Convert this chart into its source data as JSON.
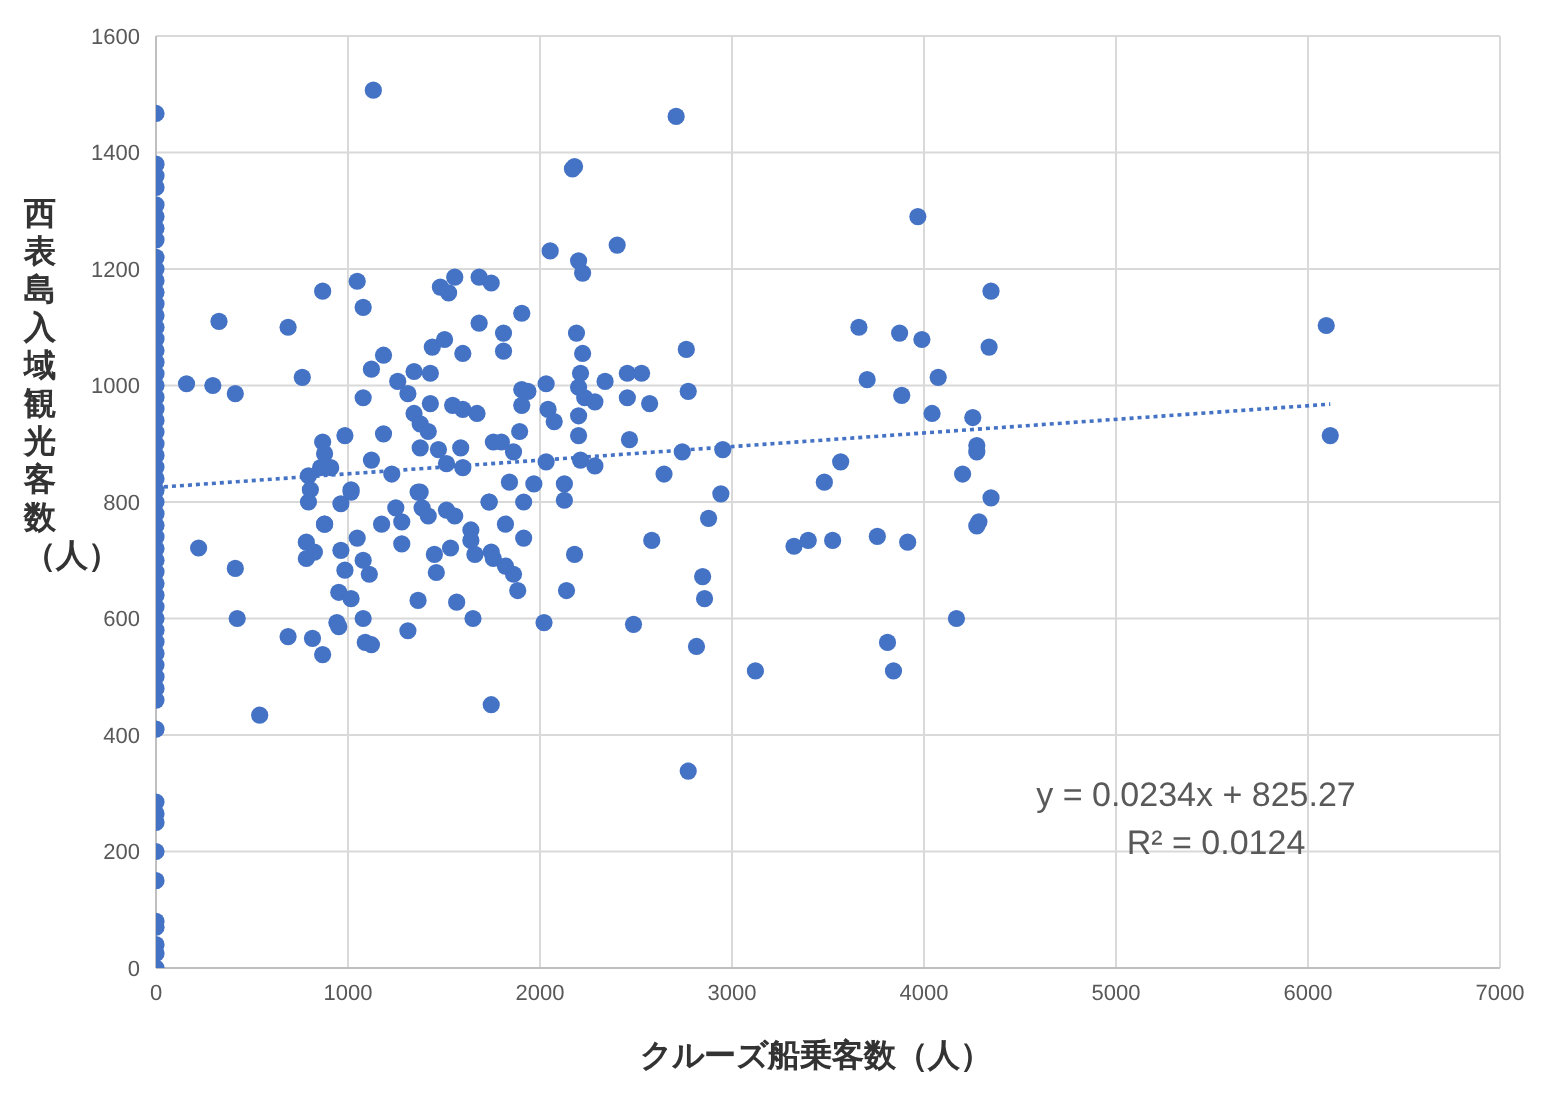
{
  "chart_data": {
    "type": "scatter",
    "xlabel": "クルーズ船乗客数（人）",
    "ylabel": "西表島入域観光客数（人）",
    "annotations": [
      "y = 0.0234x + 825.27",
      "R² = 0.0124"
    ],
    "xlim": [
      0,
      7000
    ],
    "xticks": [
      0,
      1000,
      2000,
      3000,
      4000,
      5000,
      6000,
      7000
    ],
    "ylim": [
      0,
      1600
    ],
    "yticks": [
      0,
      200,
      400,
      600,
      800,
      1000,
      1200,
      1400,
      1600
    ],
    "grid": true,
    "legend": false,
    "marker": "circle",
    "series": [
      {
        "type": "scatter",
        "color": "#4472c4",
        "x": [
          0,
          0,
          0,
          0,
          0,
          0,
          0,
          0,
          0,
          0,
          0,
          0,
          0,
          0,
          0,
          0,
          0,
          0,
          0,
          0,
          0,
          0,
          0,
          0,
          0,
          0,
          0,
          0,
          0,
          0,
          0,
          0,
          0,
          0,
          0,
          0,
          0,
          0,
          0,
          0,
          0,
          0,
          0,
          0,
          0,
          0,
          0,
          0,
          0,
          0,
          0,
          0,
          0,
          0,
          0,
          0,
          0,
          0,
          1132,
          2180,
          2053,
          868,
          1048,
          1079,
          328,
          688,
          159,
          296,
          413,
          762,
          1185,
          1122,
          1079,
          1259,
          1344,
          1429,
          1439,
          1503,
          1598,
          1481,
          1524,
          1556,
          1683,
          1746,
          1683,
          1810,
          1810,
          1905,
          1905,
          1937,
          2032,
          2042,
          2074,
          1905,
          1894,
          1862,
          1312,
          1344,
          1376,
          1418,
          1429,
          1545,
          1598,
          1672,
          1185,
          984,
          1376,
          1471,
          1587,
          1757,
          1799,
          1122,
          868,
          878,
          857,
          794,
          804,
          910,
          1228,
          1376,
          1513,
          1598,
          1735,
          1841,
          1968,
          2032,
          2127,
          1016,
          963,
          794,
          878,
          222,
          413,
          423,
          540,
          688,
          815,
          868,
          783,
          783,
          825,
          878,
          963,
          984,
          952,
          942,
          952,
          1016,
          1048,
          1079,
          1111,
          1079,
          1090,
          1122,
          1016,
          1175,
          1249,
          1280,
          1280,
          1312,
          1365,
          1386,
          1418,
          1450,
          1460,
          1513,
          1556,
          1534,
          1566,
          1640,
          1640,
          1661,
          1651,
          1735,
          1746,
          1757,
          1820,
          1820,
          1862,
          1884,
          1746,
          1915,
          1915,
          2021,
          2127,
          2138,
          2180,
          1365,
          2709,
          2169,
          2402,
          2201,
          2222,
          3968,
          4349,
          3661,
          3873,
          3989,
          4339,
          3704,
          4074,
          3884,
          4042,
          4254,
          4275,
          4275,
          4201,
          4349,
          4286,
          3481,
          3566,
          2190,
          2222,
          2211,
          2201,
          2233,
          2286,
          2339,
          2455,
          2529,
          2762,
          2772,
          2455,
          2571,
          2201,
          2201,
          2466,
          2211,
          2286,
          2741,
          2952,
          2646,
          2942,
          2878,
          2582,
          2847,
          2857,
          2487,
          2815,
          2772,
          3122,
          3323,
          3397,
          3524,
          3757,
          3915,
          3810,
          3841,
          4169,
          4275,
          6095,
          6116
        ],
        "values": [
          1467,
          1380,
          1360,
          1340,
          1310,
          1290,
          1270,
          1250,
          1220,
          1200,
          1180,
          1160,
          1140,
          1120,
          1100,
          1080,
          1060,
          1040,
          1020,
          1000,
          980,
          960,
          940,
          920,
          900,
          880,
          860,
          840,
          820,
          800,
          780,
          760,
          740,
          720,
          700,
          680,
          660,
          640,
          620,
          600,
          580,
          560,
          540,
          520,
          500,
          480,
          460,
          410,
          285,
          265,
          250,
          200,
          150,
          80,
          70,
          40,
          25,
          0,
          1507,
          1376,
          1231,
          1162,
          1179,
          1134,
          1110,
          1100,
          1003,
          1000,
          986,
          1014,
          1052,
          1028,
          979,
          1007,
          1024,
          1021,
          1066,
          1079,
          1055,
          1169,
          1159,
          1186,
          1186,
          1176,
          1107,
          1090,
          1059,
          1124,
          993,
          990,
          1003,
          959,
          938,
          966,
          921,
          886,
          986,
          952,
          934,
          921,
          969,
          966,
          959,
          952,
          917,
          914,
          893,
          890,
          893,
          903,
          903,
          872,
          903,
          883,
          859,
          845,
          821,
          859,
          848,
          817,
          866,
          859,
          800,
          834,
          831,
          869,
          831,
          821,
          797,
          800,
          762,
          721,
          686,
          600,
          434,
          569,
          566,
          538,
          731,
          703,
          714,
          762,
          717,
          683,
          645,
          593,
          586,
          634,
          738,
          700,
          676,
          600,
          559,
          555,
          817,
          762,
          790,
          766,
          728,
          579,
          631,
          790,
          776,
          710,
          679,
          786,
          776,
          721,
          628,
          752,
          734,
          710,
          600,
          800,
          714,
          703,
          762,
          690,
          676,
          648,
          452,
          738,
          800,
          593,
          803,
          648,
          710,
          817,
          1462,
          1372,
          1241,
          1214,
          1193,
          1290,
          1162,
          1100,
          1090,
          1079,
          1066,
          1010,
          1014,
          983,
          952,
          945,
          897,
          886,
          848,
          807,
          766,
          834,
          869,
          1090,
          1055,
          1021,
          997,
          979,
          972,
          1007,
          1021,
          1021,
          1062,
          990,
          979,
          969,
          948,
          914,
          907,
          872,
          862,
          886,
          890,
          848,
          814,
          772,
          734,
          672,
          634,
          590,
          552,
          338,
          510,
          724,
          734,
          734,
          741,
          731,
          559,
          510,
          600,
          759,
          1103,
          914
        ]
      },
      {
        "type": "line",
        "color": "#4472c4",
        "line_style": "dotted",
        "marker": "none",
        "x": [
          0,
          6116
        ],
        "values": [
          825,
          968
        ]
      }
    ]
  }
}
